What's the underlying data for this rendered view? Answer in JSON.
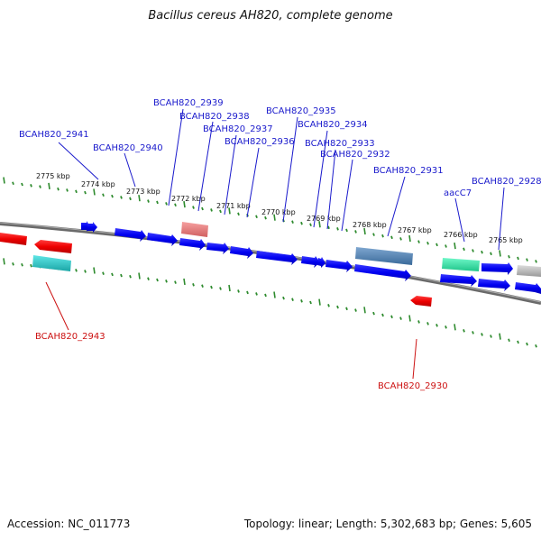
{
  "title": "Bacillus cereus AH820, complete genome",
  "footer": {
    "accession": "Accession: NC_011773",
    "stats": "Topology: linear; Length: 5,302,683 bp; Genes: 5,605"
  },
  "colors": {
    "forward_gene": "#0000ee",
    "reverse_gene": "#ee0000",
    "forward_label": "#1a1acc",
    "reverse_label": "#cc1111",
    "tick": "#2e8b2e",
    "backbone": "#777777"
  },
  "scale_labels": [
    "2775 kbp",
    "2774 kbp",
    "2773 kbp",
    "2772 kbp",
    "2771 kbp",
    "2770 kbp",
    "2769 kbp",
    "2768 kbp",
    "2767 kbp",
    "2766 kbp",
    "2765 kbp"
  ],
  "forward_labels": [
    "BCAH820_2941",
    "BCAH820_2940",
    "BCAH820_2939",
    "BCAH820_2938",
    "BCAH820_2937",
    "BCAH820_2936",
    "BCAH820_2935",
    "BCAH820_2934",
    "BCAH820_2933",
    "BCAH820_2932",
    "BCAH820_2931",
    "aacC7",
    "BCAH820_2928"
  ],
  "reverse_labels": [
    "BCAH820_2943",
    "BCAH820_2930"
  ]
}
